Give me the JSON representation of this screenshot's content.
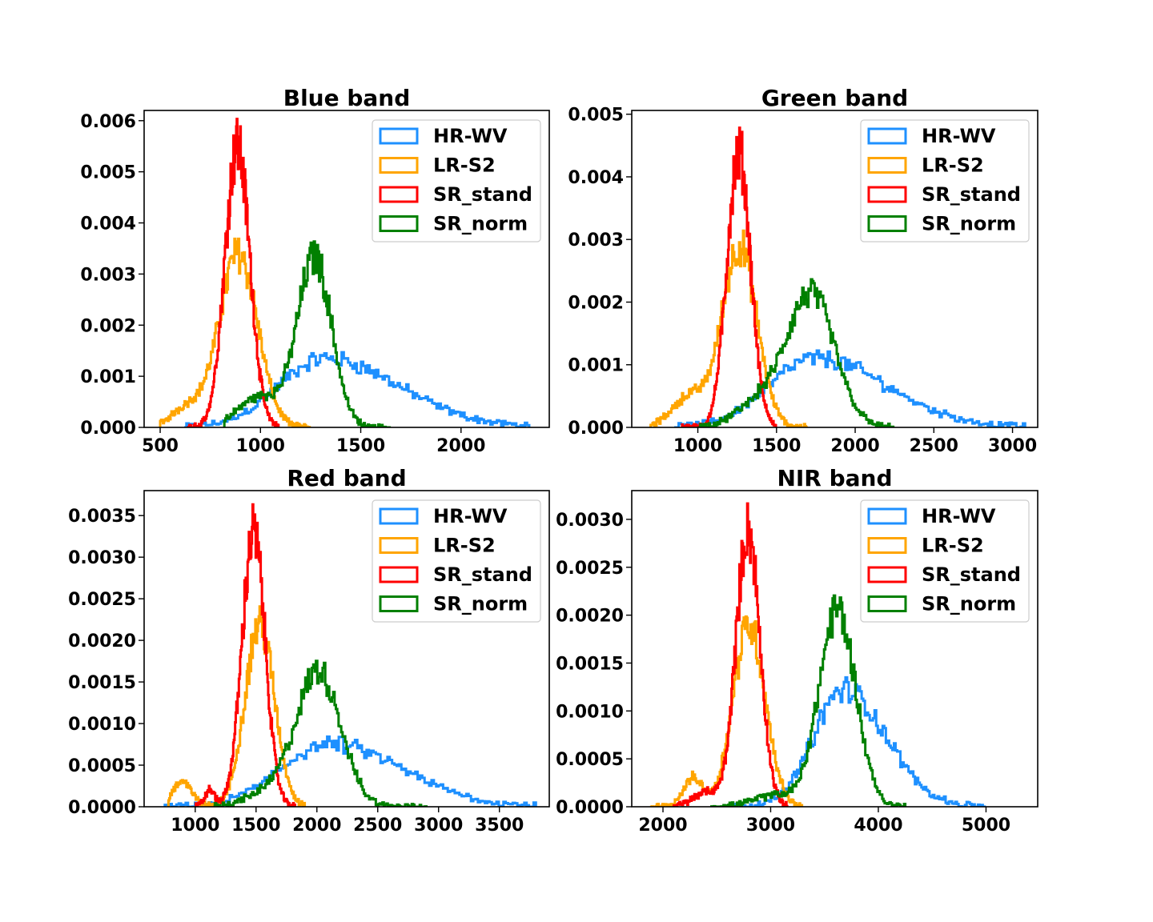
{
  "series_styles": [
    {
      "name": "HR-WV",
      "color": "#1e90ff"
    },
    {
      "name": "LR-S2",
      "color": "#ffa500"
    },
    {
      "name": "SR_stand",
      "color": "#ff0000"
    },
    {
      "name": "SR_norm",
      "color": "#008000"
    }
  ],
  "legend": {
    "placement": "upper right",
    "entries": [
      "HR-WV",
      "LR-S2",
      "SR_stand",
      "SR_norm"
    ]
  },
  "chart_data": [
    {
      "type": "histogram",
      "title": "Blue band",
      "xlim": [
        420,
        2440
      ],
      "ylim": [
        0,
        0.0062
      ],
      "xticks": [
        500,
        1000,
        1500,
        2000
      ],
      "xtick_labels": [
        "500",
        "1000",
        "1500",
        "2000"
      ],
      "yticks": [
        0,
        0.001,
        0.002,
        0.003,
        0.004,
        0.005,
        0.006
      ],
      "ytick_labels": [
        "0.000",
        "0.001",
        "0.002",
        "0.003",
        "0.004",
        "0.005",
        "0.006"
      ],
      "grid": false,
      "series": [
        {
          "name": "HR-WV",
          "color": "#1e90ff",
          "range": [
            620,
            2340
          ],
          "peaks": [
            {
              "mu": 1320,
              "sigma": 230,
              "amp": 0.00135,
              "skew": 1.6
            }
          ]
        },
        {
          "name": "LR-S2",
          "color": "#ffa500",
          "range": [
            500,
            1250
          ],
          "peaks": [
            {
              "mu": 890,
              "sigma": 95,
              "amp": 0.0034,
              "skew": 1.0
            },
            {
              "mu": 640,
              "sigma": 80,
              "amp": 0.0004,
              "skew": 1.0
            }
          ]
        },
        {
          "name": "SR_stand",
          "color": "#ff0000",
          "range": [
            640,
            1090
          ],
          "peaks": [
            {
              "mu": 885,
              "sigma": 62,
              "amp": 0.0055,
              "skew": 1.0
            }
          ]
        },
        {
          "name": "SR_norm",
          "color": "#008000",
          "range": [
            820,
            1650
          ],
          "peaks": [
            {
              "mu": 1270,
              "sigma": 85,
              "amp": 0.0033,
              "skew": 1.0
            },
            {
              "mu": 1000,
              "sigma": 110,
              "amp": 0.0006,
              "skew": 1.0
            }
          ]
        }
      ]
    },
    {
      "type": "histogram",
      "title": "Green band",
      "xlim": [
        580,
        3160
      ],
      "ylim": [
        0,
        0.00506
      ],
      "xticks": [
        1000,
        1500,
        2000,
        2500,
        3000
      ],
      "xtick_labels": [
        "1000",
        "1500",
        "2000",
        "2500",
        "3000"
      ],
      "yticks": [
        0,
        0.001,
        0.002,
        0.003,
        0.004,
        0.005
      ],
      "ytick_labels": [
        "0.000",
        "0.001",
        "0.002",
        "0.003",
        "0.004",
        "0.005"
      ],
      "grid": false,
      "series": [
        {
          "name": "HR-WV",
          "color": "#1e90ff",
          "range": [
            850,
            3080
          ],
          "peaks": [
            {
              "mu": 1750,
              "sigma": 300,
              "amp": 0.0011,
              "skew": 1.5
            }
          ]
        },
        {
          "name": "LR-S2",
          "color": "#ffa500",
          "range": [
            700,
            1700
          ],
          "peaks": [
            {
              "mu": 1265,
              "sigma": 110,
              "amp": 0.0029,
              "skew": 1.0
            },
            {
              "mu": 950,
              "sigma": 110,
              "amp": 0.0005,
              "skew": 1.0
            }
          ]
        },
        {
          "name": "SR_stand",
          "color": "#ff0000",
          "range": [
            900,
            1500
          ],
          "peaks": [
            {
              "mu": 1260,
              "sigma": 75,
              "amp": 0.0044,
              "skew": 1.0
            }
          ]
        },
        {
          "name": "SR_norm",
          "color": "#008000",
          "range": [
            1000,
            2250
          ],
          "peaks": [
            {
              "mu": 1720,
              "sigma": 150,
              "amp": 0.0021,
              "skew": 1.0
            },
            {
              "mu": 1400,
              "sigma": 150,
              "amp": 0.0004,
              "skew": 1.0
            }
          ]
        }
      ]
    },
    {
      "type": "histogram",
      "title": "Red band",
      "xlim": [
        580,
        3910
      ],
      "ylim": [
        0,
        0.0038
      ],
      "xticks": [
        1000,
        1500,
        2000,
        2500,
        3000,
        3500
      ],
      "xtick_labels": [
        "1000",
        "1500",
        "2000",
        "2500",
        "3000",
        "3500"
      ],
      "yticks": [
        0,
        0.0005,
        0.001,
        0.0015,
        0.002,
        0.0025,
        0.003,
        0.0035
      ],
      "ytick_labels": [
        "0.0000",
        "0.0005",
        "0.0010",
        "0.0015",
        "0.0020",
        "0.0025",
        "0.0030",
        "0.0035"
      ],
      "grid": false,
      "series": [
        {
          "name": "HR-WV",
          "color": "#1e90ff",
          "range": [
            750,
            3800
          ],
          "peaks": [
            {
              "mu": 2100,
              "sigma": 400,
              "amp": 0.00075,
              "skew": 1.5
            }
          ]
        },
        {
          "name": "LR-S2",
          "color": "#ffa500",
          "range": [
            780,
            1900
          ],
          "peaks": [
            {
              "mu": 1530,
              "sigma": 120,
              "amp": 0.0022,
              "skew": 1.0
            },
            {
              "mu": 900,
              "sigma": 80,
              "amp": 0.0003,
              "skew": 1.0
            }
          ]
        },
        {
          "name": "SR_stand",
          "color": "#ff0000",
          "range": [
            1000,
            1820
          ],
          "peaks": [
            {
              "mu": 1480,
              "sigma": 95,
              "amp": 0.0033,
              "skew": 1.0
            },
            {
              "mu": 1120,
              "sigma": 40,
              "amp": 0.0002,
              "skew": 1.0
            }
          ]
        },
        {
          "name": "SR_norm",
          "color": "#008000",
          "range": [
            1150,
            2900
          ],
          "peaks": [
            {
              "mu": 2020,
              "sigma": 180,
              "amp": 0.0016,
              "skew": 1.0
            },
            {
              "mu": 1650,
              "sigma": 200,
              "amp": 0.0002,
              "skew": 1.0
            }
          ]
        }
      ]
    },
    {
      "type": "histogram",
      "title": "NIR band",
      "xlim": [
        1710,
        5480
      ],
      "ylim": [
        0,
        0.0033
      ],
      "xticks": [
        2000,
        3000,
        4000,
        5000
      ],
      "xtick_labels": [
        "2000",
        "3000",
        "4000",
        "5000"
      ],
      "yticks": [
        0,
        0.0005,
        0.001,
        0.0015,
        0.002,
        0.0025,
        0.003
      ],
      "ytick_labels": [
        "0.0000",
        "0.0005",
        "0.0010",
        "0.0015",
        "0.0020",
        "0.0025",
        "0.0030"
      ],
      "grid": false,
      "series": [
        {
          "name": "HR-WV",
          "color": "#1e90ff",
          "range": [
            2600,
            5000
          ],
          "peaks": [
            {
              "mu": 3680,
              "sigma": 280,
              "amp": 0.00122,
              "skew": 1.4
            }
          ]
        },
        {
          "name": "LR-S2",
          "color": "#ffa500",
          "range": [
            1880,
            3300
          ],
          "peaks": [
            {
              "mu": 2800,
              "sigma": 150,
              "amp": 0.0019,
              "skew": 1.0
            },
            {
              "mu": 2280,
              "sigma": 90,
              "amp": 0.0003,
              "skew": 1.0
            }
          ]
        },
        {
          "name": "SR_stand",
          "color": "#ff0000",
          "range": [
            2100,
            3160
          ],
          "peaks": [
            {
              "mu": 2790,
              "sigma": 110,
              "amp": 0.0029,
              "skew": 1.0
            },
            {
              "mu": 2400,
              "sigma": 120,
              "amp": 0.00015,
              "skew": 1.0
            }
          ]
        },
        {
          "name": "SR_norm",
          "color": "#008000",
          "range": [
            2450,
            4250
          ],
          "peaks": [
            {
              "mu": 3620,
              "sigma": 170,
              "amp": 0.00205,
              "skew": 1.0
            },
            {
              "mu": 3050,
              "sigma": 200,
              "amp": 0.00012,
              "skew": 1.0
            }
          ]
        }
      ]
    }
  ]
}
